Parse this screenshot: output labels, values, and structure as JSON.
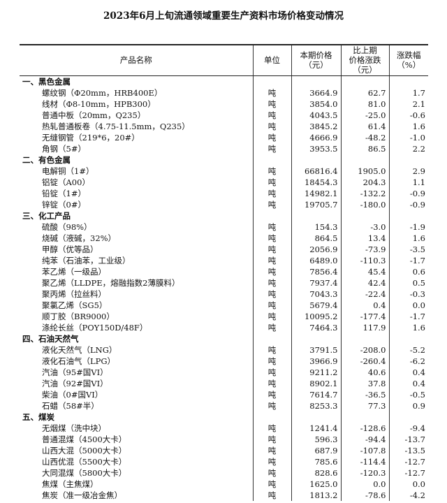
{
  "title": "2023年6月上旬流通领域重要生产资料市场价格变动情况",
  "headers": {
    "name": "产品名称",
    "unit": "单位",
    "price": [
      "本期价格",
      "（元）"
    ],
    "change": [
      "比上期",
      "价格涨跌",
      "（元）"
    ],
    "pct": [
      "涨跌幅",
      "（%）"
    ]
  },
  "sections": [
    {
      "title": "一、黑色金属",
      "rows": [
        [
          "螺纹钢（Φ20mm，HRB400E）",
          "吨",
          "3664.9",
          "62.7",
          "1.7"
        ],
        [
          "线材（Φ8-10mm，HPB300）",
          "吨",
          "3854.0",
          "81.0",
          "2.1"
        ],
        [
          "普通中板（20mm，Q235）",
          "吨",
          "4043.5",
          "-25.0",
          "-0.6"
        ],
        [
          "热轧普通板卷（4.75-11.5mm，Q235）",
          "吨",
          "3845.2",
          "61.4",
          "1.6"
        ],
        [
          "无缝钢管（219*6，20#）",
          "吨",
          "4666.9",
          "-48.2",
          "-1.0"
        ],
        [
          "角钢（5#）",
          "吨",
          "3953.5",
          "86.5",
          "2.2"
        ]
      ]
    },
    {
      "title": "二、有色金属",
      "rows": [
        [
          "电解铜（1#）",
          "吨",
          "66816.4",
          "1905.0",
          "2.9"
        ],
        [
          "铝锭（A00）",
          "吨",
          "18454.3",
          "204.3",
          "1.1"
        ],
        [
          "铅锭（1#）",
          "吨",
          "14982.1",
          "-132.2",
          "-0.9"
        ],
        [
          "锌锭（0#）",
          "吨",
          "19705.7",
          "-180.0",
          "-0.9"
        ]
      ]
    },
    {
      "title": "三、化工产品",
      "rows": [
        [
          "硫酸（98%）",
          "吨",
          "154.3",
          "-3.0",
          "-1.9"
        ],
        [
          "烧碱（液碱，32%）",
          "吨",
          "864.5",
          "13.4",
          "1.6"
        ],
        [
          "甲醇（优等品）",
          "吨",
          "2056.9",
          "-73.9",
          "-3.5"
        ],
        [
          "纯苯（石油苯，工业级）",
          "吨",
          "6489.0",
          "-110.3",
          "-1.7"
        ],
        [
          "苯乙烯（一级品）",
          "吨",
          "7856.4",
          "45.4",
          "0.6"
        ],
        [
          "聚乙烯（LLDPE，熔融指数2薄膜料）",
          "吨",
          "7937.4",
          "42.4",
          "0.5"
        ],
        [
          "聚丙烯（拉丝料）",
          "吨",
          "7043.3",
          "-22.4",
          "-0.3"
        ],
        [
          "聚氯乙烯（SG5）",
          "吨",
          "5679.4",
          "0.4",
          "0.0"
        ],
        [
          "顺丁胶（BR9000）",
          "吨",
          "10095.2",
          "-177.4",
          "-1.7"
        ],
        [
          "涤纶长丝（POY150D/48F）",
          "吨",
          "7464.3",
          "117.9",
          "1.6"
        ]
      ]
    },
    {
      "title": "四、石油天然气",
      "rows": [
        [
          "液化天然气（LNG）",
          "吨",
          "3791.5",
          "-208.0",
          "-5.2"
        ],
        [
          "液化石油气（LPG）",
          "吨",
          "3966.9",
          "-260.4",
          "-6.2"
        ],
        [
          "汽油（95#国VI）",
          "吨",
          "9211.2",
          "40.6",
          "0.4"
        ],
        [
          "汽油（92#国VI）",
          "吨",
          "8902.1",
          "37.8",
          "0.4"
        ],
        [
          "柴油（0#国VI）",
          "吨",
          "7614.7",
          "-36.5",
          "-0.5"
        ],
        [
          "石蜡（58#半）",
          "吨",
          "8253.3",
          "77.3",
          "0.9"
        ]
      ]
    },
    {
      "title": "五、煤炭",
      "rows": [
        [
          "无烟煤（洗中块）",
          "吨",
          "1241.4",
          "-128.6",
          "-9.4"
        ],
        [
          "普通混煤（4500大卡）",
          "吨",
          "596.3",
          "-94.4",
          "-13.7"
        ],
        [
          "山西大混（5000大卡）",
          "吨",
          "687.9",
          "-107.8",
          "-13.5"
        ],
        [
          "山西优混（5500大卡）",
          "吨",
          "785.6",
          "-114.4",
          "-12.7"
        ],
        [
          "大同混煤（5800大卡）",
          "吨",
          "828.6",
          "-120.3",
          "-12.7"
        ],
        [
          "焦煤（主焦煤）",
          "吨",
          "1625.0",
          "0.0",
          "0.0"
        ],
        [
          "焦炭（准一级冶金焦）",
          "吨",
          "1813.2",
          "-78.6",
          "-4.2"
        ]
      ]
    }
  ]
}
